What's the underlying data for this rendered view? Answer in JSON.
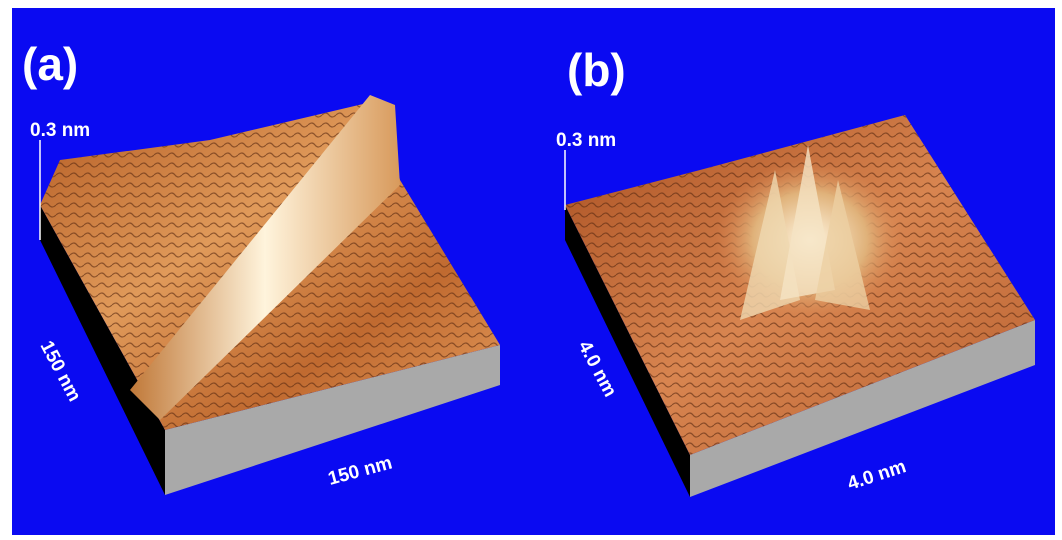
{
  "panels": [
    {
      "label": "(a)",
      "z_scale": "0.3 nm",
      "side_axis": "150 nm",
      "front_axis": "150 nm"
    },
    {
      "label": "(b)",
      "z_scale": "0.3 nm",
      "side_axis": "4.0 nm",
      "front_axis": "4.0 nm"
    }
  ]
}
